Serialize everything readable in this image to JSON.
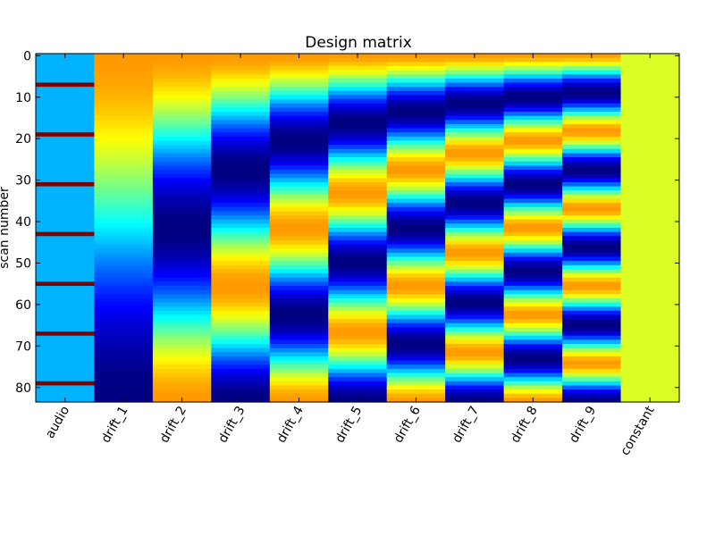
{
  "chart_data": {
    "type": "heatmap",
    "title": "Design matrix",
    "xlabel": "",
    "ylabel": "scan number",
    "columns": [
      "audio",
      "drift_1",
      "drift_2",
      "drift_3",
      "drift_4",
      "drift_5",
      "drift_6",
      "drift_7",
      "drift_8",
      "drift_9",
      "constant"
    ],
    "y_ticks": [
      0,
      10,
      20,
      30,
      40,
      50,
      60,
      70,
      80
    ],
    "n_scans": 84,
    "ylim": [
      -0.5,
      83.5
    ],
    "colormap": "jet",
    "value_range": [
      -1,
      1
    ],
    "grid": false,
    "legend": "none",
    "audio": {
      "baseline": -0.4,
      "peak": 1,
      "onsets": [
        7,
        19,
        31,
        43,
        55,
        67,
        79
      ],
      "duration": 1
    },
    "constant": 0.18,
    "drift_orders": [
      1,
      2,
      3,
      4,
      5,
      6,
      7,
      8,
      9
    ],
    "drift_range": [
      -1,
      0.45
    ]
  }
}
